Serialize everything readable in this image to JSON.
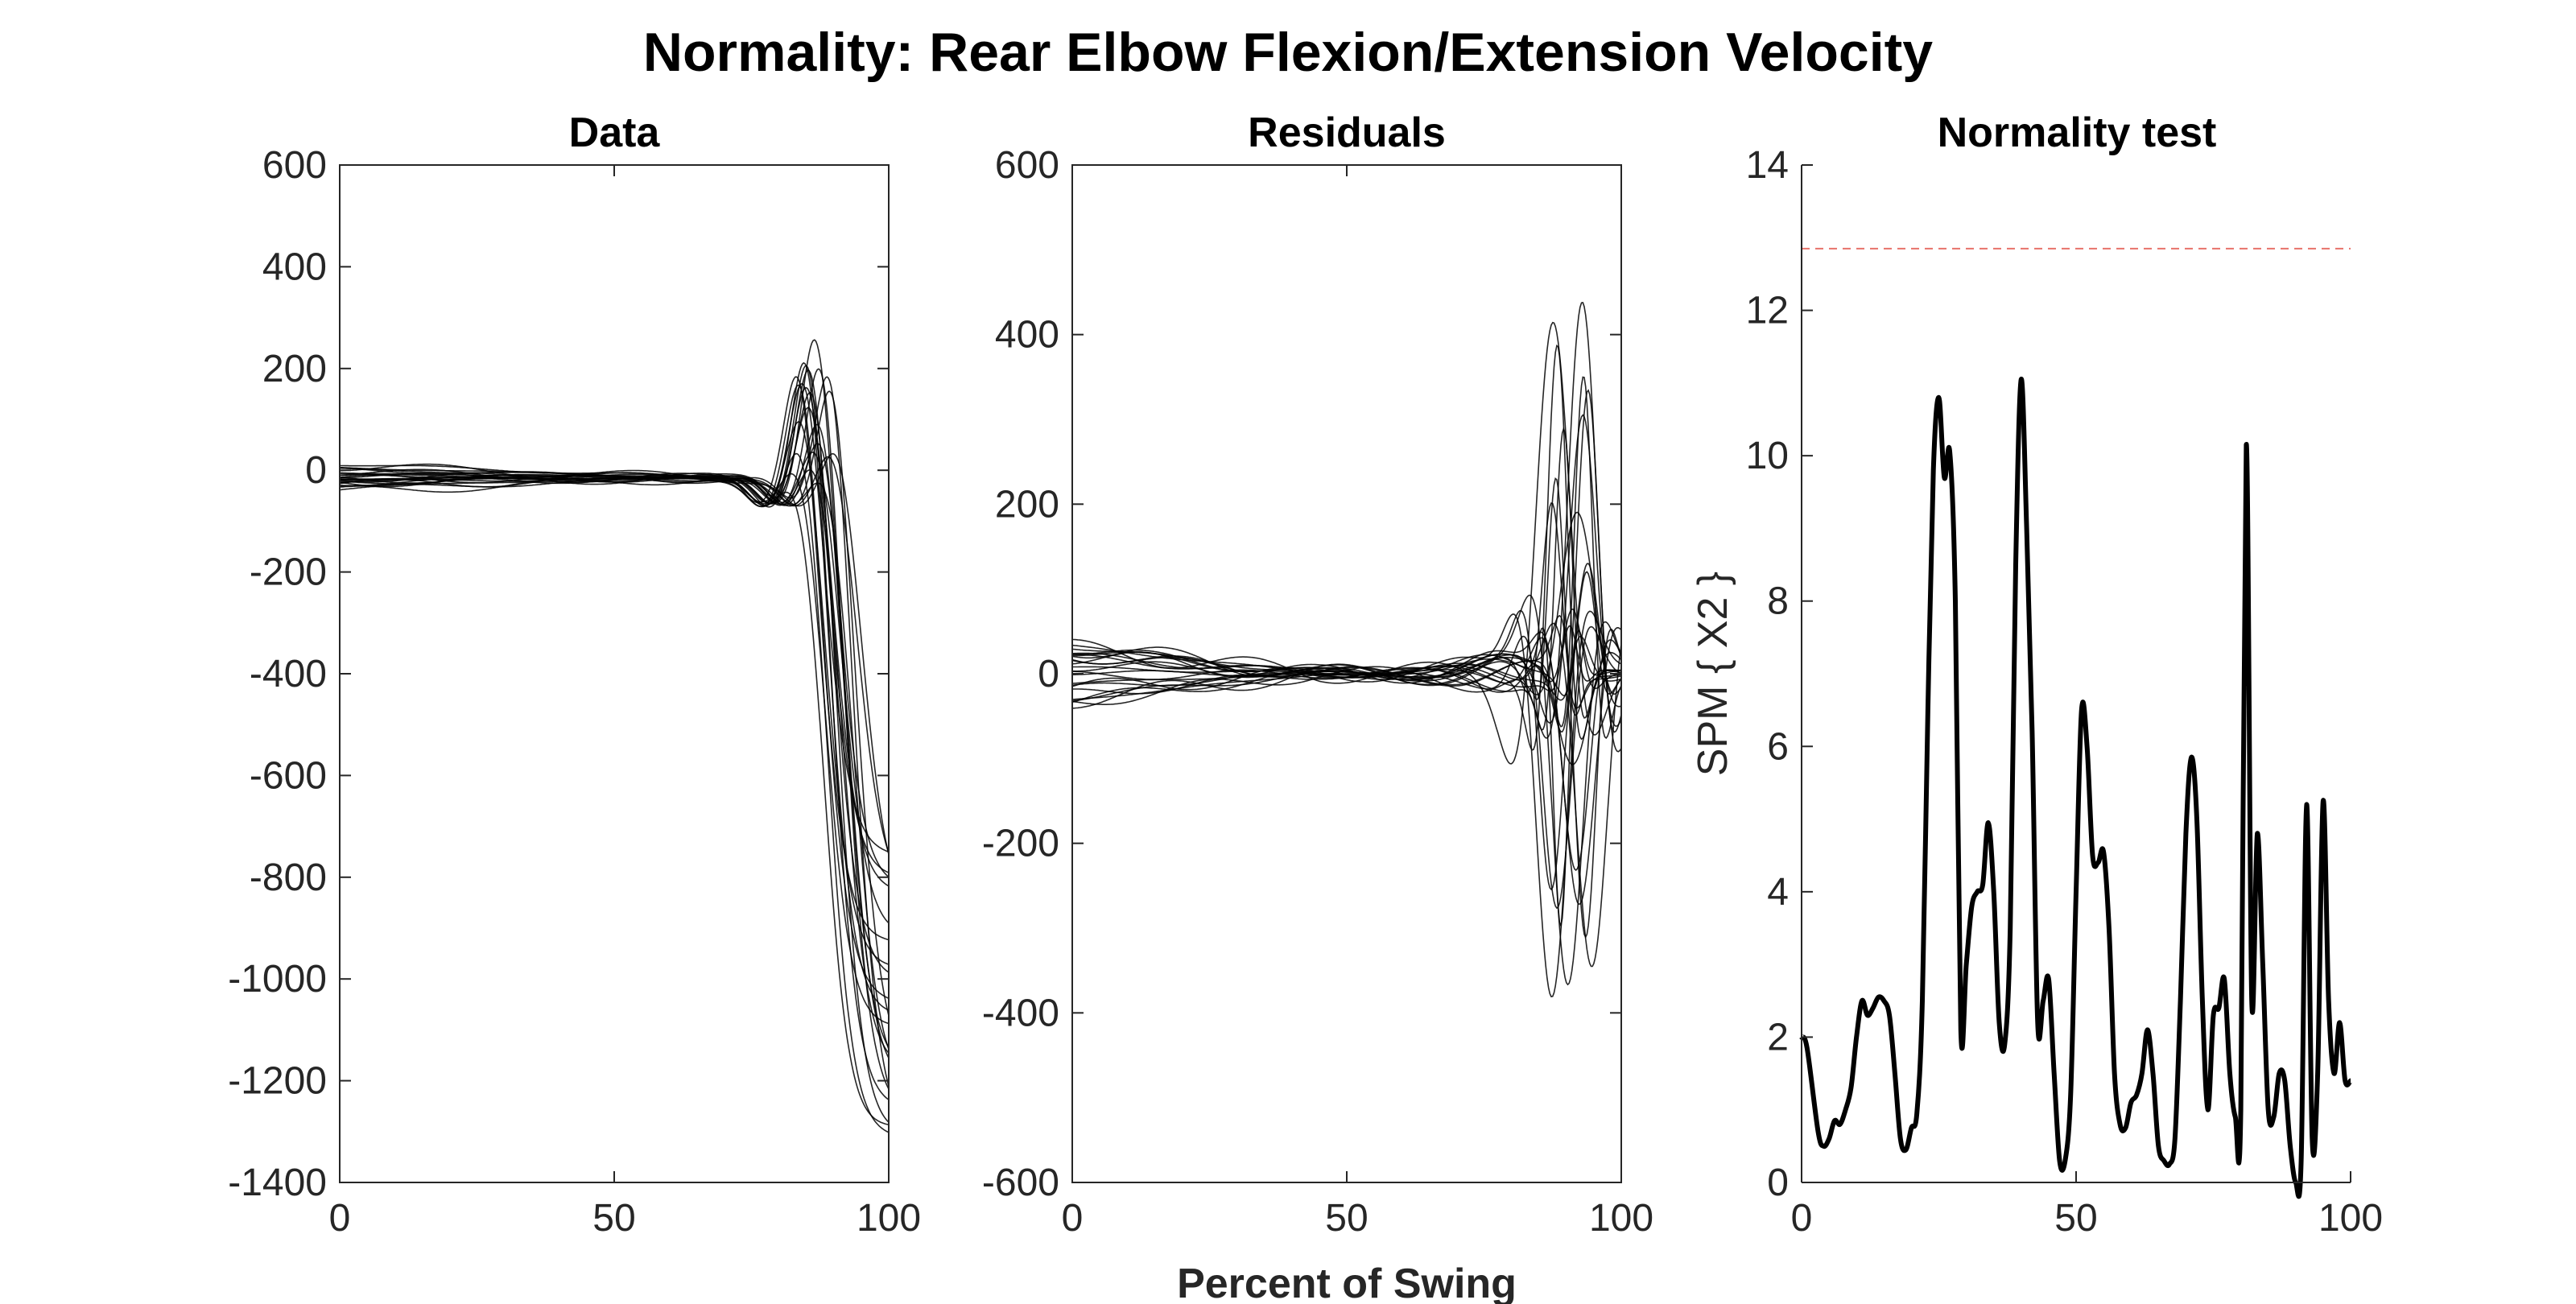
{
  "figure": {
    "title": "Normality: Rear Elbow Flexion/Extension Velocity",
    "xlabel": "Percent of Swing"
  },
  "chart_data": [
    {
      "type": "line",
      "title": "Data",
      "xlim": [
        0,
        100
      ],
      "ylim": [
        -1400,
        600
      ],
      "xticks": [
        0,
        50,
        100
      ],
      "yticks": [
        600,
        400,
        200,
        0,
        -200,
        -400,
        -600,
        -800,
        -1000,
        -1200,
        -1400
      ],
      "line_color": "#000000",
      "n_curves": 24
    },
    {
      "type": "line",
      "title": "Residuals",
      "xlim": [
        0,
        100
      ],
      "ylim": [
        -600,
        600
      ],
      "xticks": [
        0,
        50,
        100
      ],
      "yticks": [
        600,
        400,
        200,
        0,
        -200,
        -400,
        -600
      ],
      "line_color": "#000000",
      "n_curves": 24
    },
    {
      "type": "line",
      "title": "Normality test",
      "ylabel": "SPM { X2 }",
      "xlim": [
        0,
        100
      ],
      "ylim": [
        0,
        14
      ],
      "xticks": [
        0,
        50,
        100
      ],
      "yticks": [
        14,
        12,
        10,
        8,
        6,
        4,
        2,
        0
      ],
      "threshold": 12.85,
      "threshold_color": "#e8736b",
      "line_color": "#000000",
      "series": [
        {
          "x": [
            0,
            1,
            3,
            4,
            5,
            6,
            7,
            8,
            9,
            10,
            11,
            12,
            13,
            14,
            15,
            16,
            17,
            18,
            19,
            20,
            21,
            22,
            23,
            24,
            25,
            26,
            27,
            28,
            29,
            30,
            31,
            32,
            33,
            34,
            35,
            36,
            37,
            38,
            39,
            40,
            41,
            42,
            43,
            44,
            45,
            46,
            47,
            48,
            49,
            50,
            51,
            52,
            53,
            54,
            55,
            56,
            57,
            58,
            59,
            60,
            61,
            62,
            63,
            64,
            65,
            66,
            67,
            68,
            69,
            70,
            71,
            72,
            73,
            74,
            75,
            76,
            77,
            78,
            79,
            80,
            81,
            82,
            83,
            84,
            85,
            86,
            87,
            88,
            89,
            90,
            91,
            92,
            93,
            94,
            95,
            96,
            97,
            98,
            99,
            100
          ],
          "y": [
            2.0,
            1.85,
            0.7,
            0.5,
            0.6,
            0.85,
            0.8,
            1.0,
            1.3,
            2.0,
            2.5,
            2.3,
            2.4,
            2.55,
            2.5,
            2.3,
            1.5,
            0.6,
            0.45,
            0.75,
            0.95,
            2.5,
            6.5,
            9.8,
            10.8,
            9.7,
            10.05,
            8.0,
            2.1,
            3.0,
            3.8,
            4.0,
            4.1,
            4.95,
            4.0,
            2.2,
            1.9,
            3.5,
            8.5,
            11.05,
            9.0,
            6.2,
            2.2,
            2.5,
            2.8,
            1.5,
            0.3,
            0.3,
            1.2,
            4.0,
            6.5,
            6.0,
            4.5,
            4.4,
            4.55,
            3.5,
            1.5,
            0.8,
            0.75,
            1.1,
            1.2,
            1.5,
            2.1,
            1.5,
            0.5,
            0.3,
            0.25,
            0.6,
            2.5,
            4.8,
            5.85,
            5.0,
            2.5,
            1.0,
            2.3,
            2.4,
            2.8,
            1.5,
            0.9,
            1.0,
            10.15,
            2.5,
            4.8,
            3.0,
            1.0,
            0.9,
            1.5,
            1.4,
            0.5,
            0.0,
            0.3,
            5.2,
            0.6,
            1.5,
            5.25,
            2.5,
            1.5,
            2.2,
            1.4,
            1.4
          ]
        }
      ]
    }
  ]
}
